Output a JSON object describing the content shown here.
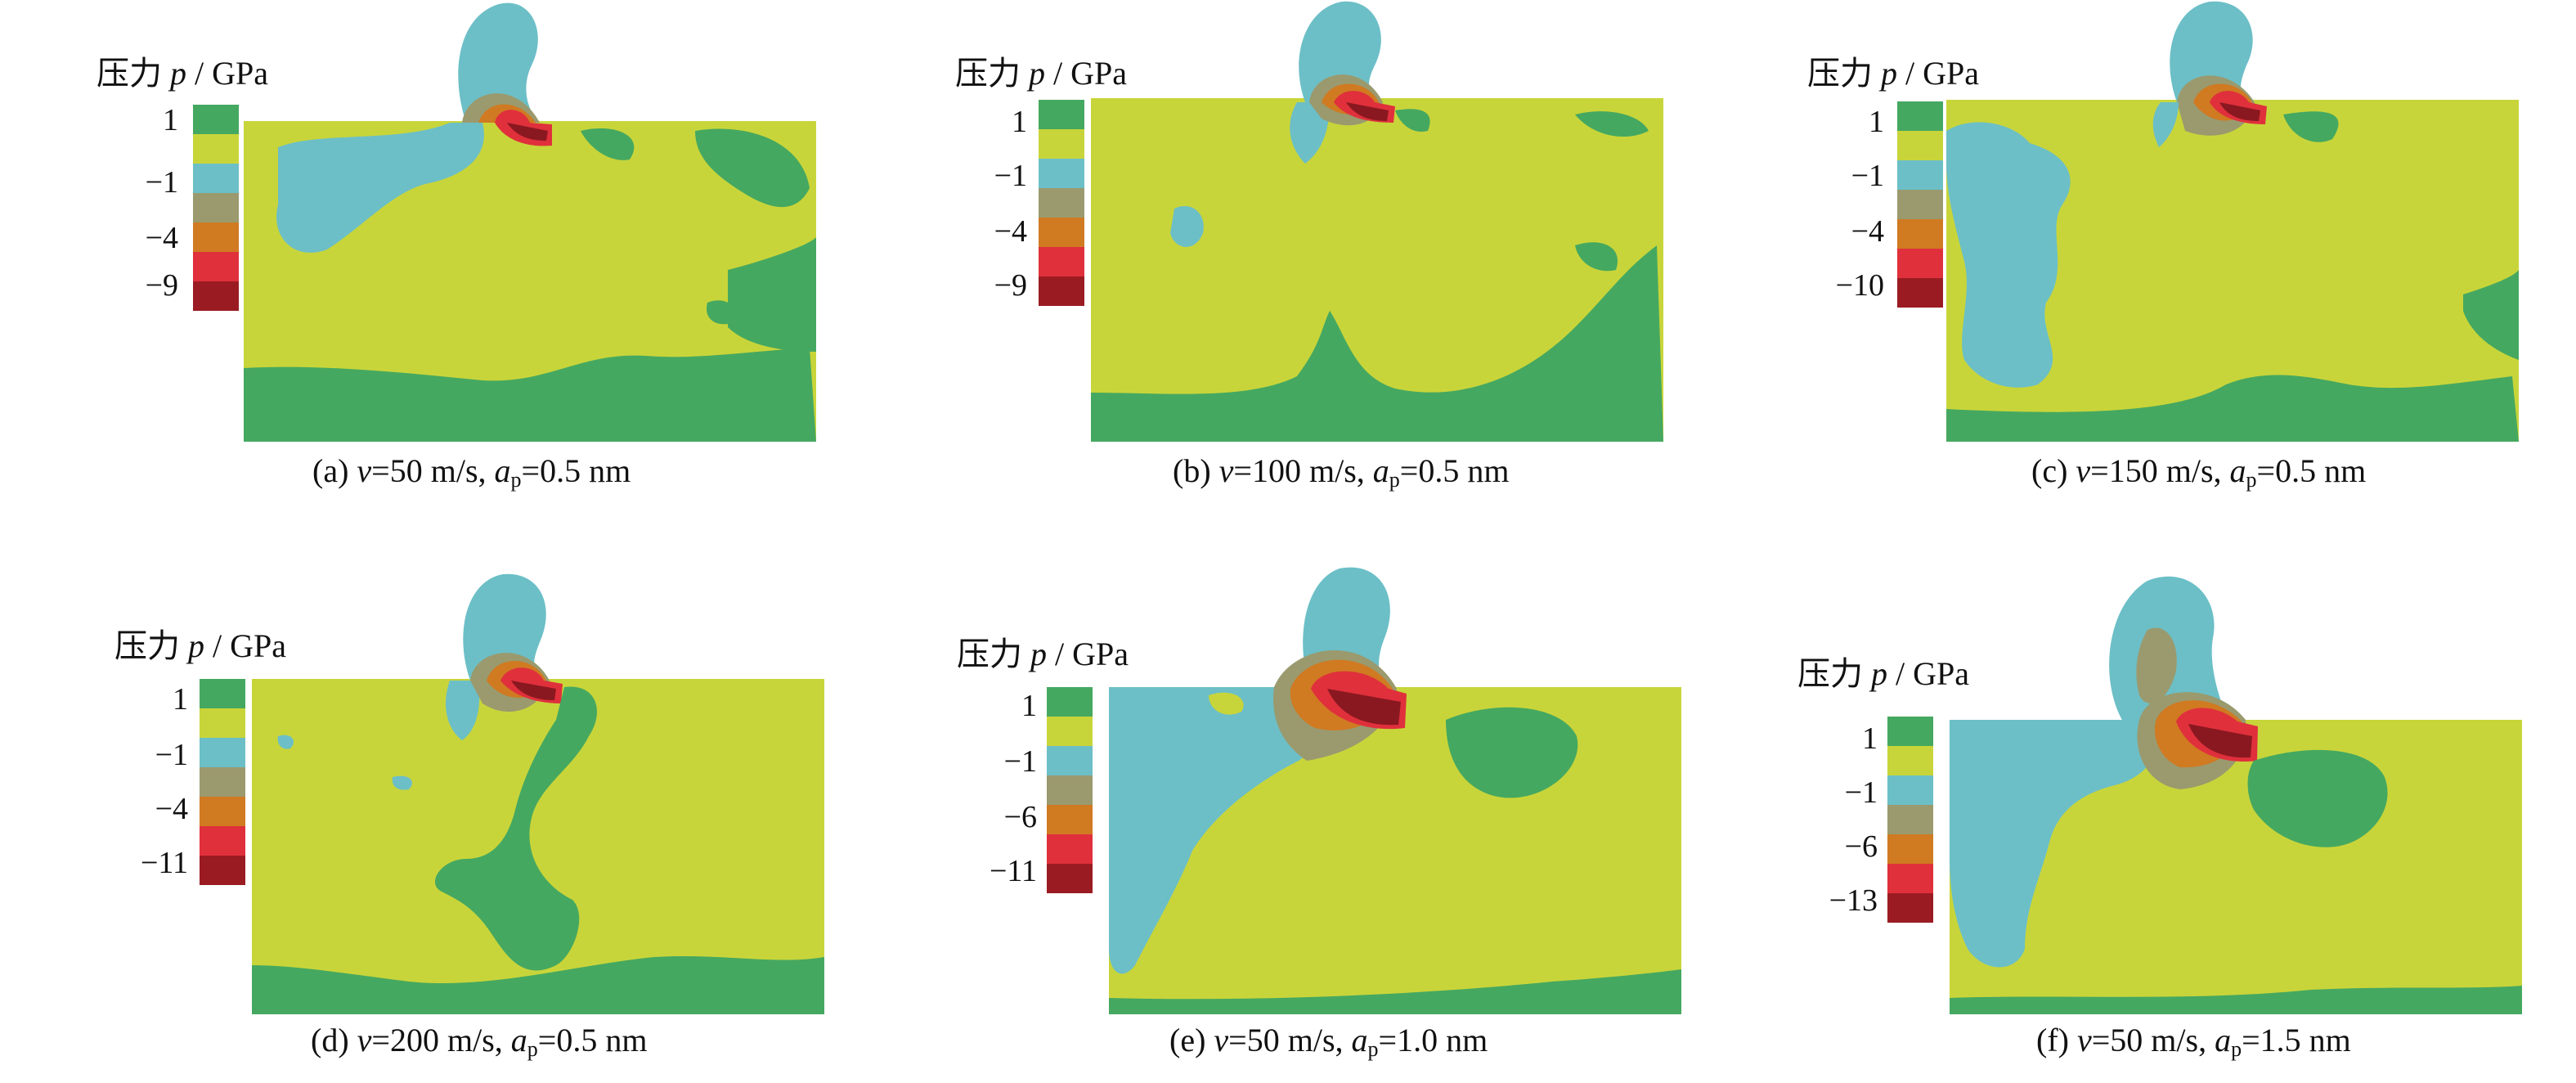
{
  "legend_colors": [
    "#45a860",
    "#c8d53a",
    "#6cbfc7",
    "#9a9a6e",
    "#d07a22",
    "#e0303c",
    "#9a1c22"
  ],
  "region_colors": {
    "base": "#c8d53a",
    "green": "#45a860",
    "cyan": "#6cbfc7",
    "olive": "#9a9a6e",
    "orange": "#d07a22",
    "red": "#e0303c",
    "darkred": "#8a1820"
  },
  "panels": [
    {
      "legend_title": "压力",
      "legend_symbol": "p",
      "legend_unit": "/ GPa",
      "ticks": [
        "1",
        "−1",
        "−4",
        "−9"
      ],
      "caption": {
        "prefix": "(a) ",
        "v_sym": "v",
        "v_val": "=50 m/s, ",
        "a_sym": "a",
        "a_sub": "p",
        "a_val": "=0.5 nm"
      }
    },
    {
      "legend_title": "压力",
      "legend_symbol": "p",
      "legend_unit": "/ GPa",
      "ticks": [
        "1",
        "−1",
        "−4",
        "−9"
      ],
      "caption": {
        "prefix": "(b) ",
        "v_sym": "v",
        "v_val": "=100 m/s, ",
        "a_sym": "a",
        "a_sub": "p",
        "a_val": "=0.5 nm"
      }
    },
    {
      "legend_title": "压力",
      "legend_symbol": "p",
      "legend_unit": "/ GPa",
      "ticks": [
        "1",
        "−1",
        "−4",
        "−10"
      ],
      "caption": {
        "prefix": "(c) ",
        "v_sym": "v",
        "v_val": "=150 m/s, ",
        "a_sym": "a",
        "a_sub": "p",
        "a_val": "=0.5 nm"
      }
    },
    {
      "legend_title": "压力",
      "legend_symbol": "p",
      "legend_unit": "/ GPa",
      "ticks": [
        "1",
        "−1",
        "−4",
        "−11"
      ],
      "caption": {
        "prefix": "(d) ",
        "v_sym": "v",
        "v_val": "=200 m/s, ",
        "a_sym": "a",
        "a_sub": "p",
        "a_val": "=0.5 nm"
      }
    },
    {
      "legend_title": "压力",
      "legend_symbol": "p",
      "legend_unit": "/ GPa",
      "ticks": [
        "1",
        "−1",
        "−6",
        "−11"
      ],
      "caption": {
        "prefix": "(e) ",
        "v_sym": "v",
        "v_val": "=50 m/s, ",
        "a_sym": "a",
        "a_sub": "p",
        "a_val": "=1.0 nm"
      }
    },
    {
      "legend_title": "压力",
      "legend_symbol": "p",
      "legend_unit": "/ GPa",
      "ticks": [
        "1",
        "−1",
        "−6",
        "−13"
      ],
      "caption": {
        "prefix": "(f) ",
        "v_sym": "v",
        "v_val": "=50 m/s, ",
        "a_sym": "a",
        "a_sub": "p",
        "a_val": "=1.5 nm"
      }
    }
  ]
}
